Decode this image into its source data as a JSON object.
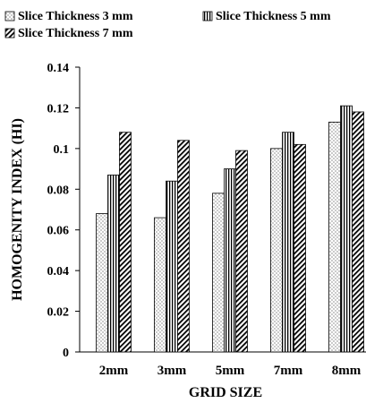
{
  "chart_data": {
    "type": "bar",
    "xlabel": "GRID SIZE",
    "ylabel": "HOMOGENITY INDEX (HI)",
    "categories": [
      "2mm",
      "3mm",
      "5mm",
      "7mm",
      "8mm"
    ],
    "ylim": [
      0,
      0.14
    ],
    "yticks": [
      0,
      0.02,
      0.04,
      0.06,
      0.08,
      0.1,
      0.12,
      0.14
    ],
    "ytick_labels": [
      "0",
      "0.02",
      "0.04",
      "0.06",
      "0.08",
      "0.1",
      "0.12",
      "0.14"
    ],
    "grid": false,
    "legend_position": "top",
    "series": [
      {
        "name": "Slice Thickness 3 mm",
        "pattern": "dots",
        "values": [
          0.068,
          0.066,
          0.078,
          0.1,
          0.113
        ]
      },
      {
        "name": "Slice Thickness 5 mm",
        "pattern": "vertical-lines",
        "values": [
          0.087,
          0.084,
          0.09,
          0.108,
          0.121
        ]
      },
      {
        "name": "Slice Thickness 7 mm",
        "pattern": "diagonal-hatch",
        "values": [
          0.108,
          0.104,
          0.099,
          0.102,
          0.118
        ]
      }
    ]
  }
}
